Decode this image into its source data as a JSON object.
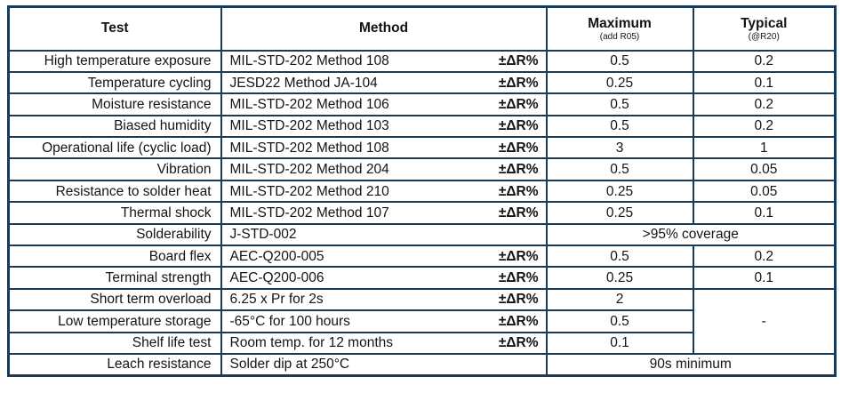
{
  "table": {
    "dr_label": "±ΔR%",
    "header": {
      "test": "Test",
      "method": "Method",
      "maximum": "Maximum",
      "maximum_sub": "(add R05)",
      "typical": "Typical",
      "typical_sub": "(@R20)"
    },
    "rows": [
      {
        "test": "High temperature exposure",
        "method": "MIL-STD-202 Method 108",
        "dr": true,
        "max": "0.5",
        "typ": "0.2"
      },
      {
        "test": "Temperature cycling",
        "method": "JESD22 Method JA-104",
        "dr": true,
        "max": "0.25",
        "typ": "0.1"
      },
      {
        "test": "Moisture resistance",
        "method": "MIL-STD-202 Method 106",
        "dr": true,
        "max": "0.5",
        "typ": "0.2"
      },
      {
        "test": "Biased humidity",
        "method": "MIL-STD-202 Method 103",
        "dr": true,
        "max": "0.5",
        "typ": "0.2"
      },
      {
        "test": "Operational life (cyclic load)",
        "method": "MIL-STD-202 Method 108",
        "dr": true,
        "max": "3",
        "typ": "1"
      },
      {
        "test": "Vibration",
        "method": "MIL-STD-202 Method 204",
        "dr": true,
        "max": "0.5",
        "typ": "0.05"
      },
      {
        "test": "Resistance to solder heat",
        "method": "MIL-STD-202 Method 210",
        "dr": true,
        "max": "0.25",
        "typ": "0.05"
      },
      {
        "test": "Thermal shock",
        "method": "MIL-STD-202 Method 107",
        "dr": true,
        "max": "0.25",
        "typ": "0.1"
      },
      {
        "test": "Solderability",
        "method": "J-STD-002",
        "dr": false,
        "span": ">95% coverage"
      },
      {
        "test": "Board flex",
        "method": "AEC-Q200-005",
        "dr": true,
        "max": "0.5",
        "typ": "0.2"
      },
      {
        "test": "Terminal strength",
        "method": "AEC-Q200-006",
        "dr": true,
        "max": "0.25",
        "typ": "0.1"
      },
      {
        "test": "Short term overload",
        "method": "6.25 x Pr for 2s",
        "dr": true,
        "max": "2",
        "typ": "-"
      },
      {
        "test": "Low temperature storage",
        "method": "-65°C for 100 hours",
        "dr": true,
        "max": "0.5"
      },
      {
        "test": "Shelf life test",
        "method": "Room temp. for 12 months",
        "dr": true,
        "max": "0.1"
      },
      {
        "test": "Leach resistance",
        "method": "Solder dip at 250°C",
        "dr": false,
        "span": "90s minimum"
      }
    ],
    "colors": {
      "border": "#1a3a56",
      "text": "#141414",
      "background": "#ffffff"
    }
  }
}
